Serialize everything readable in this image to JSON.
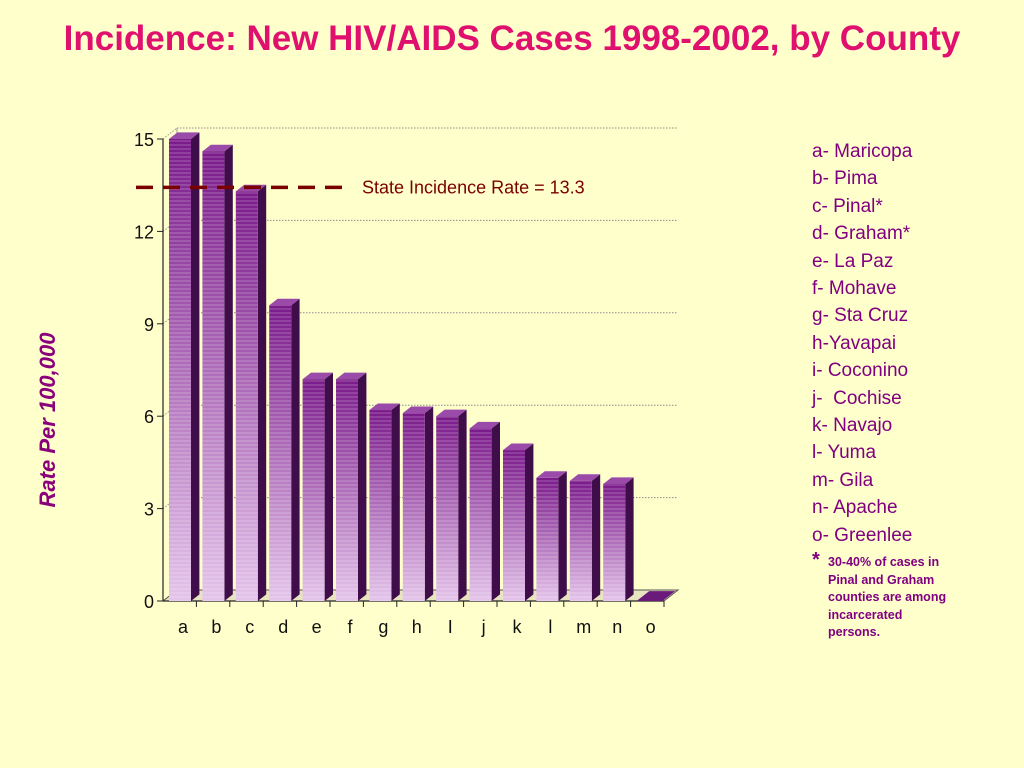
{
  "title": "Incidence: New HIV/AIDS Cases 1998-2002, by County",
  "chart_data": {
    "type": "bar",
    "categories": [
      "a",
      "b",
      "c",
      "d",
      "e",
      "f",
      "g",
      "h",
      "I",
      "j",
      "k",
      "l",
      "m",
      "n",
      "o"
    ],
    "values": [
      15.0,
      14.6,
      13.3,
      9.6,
      7.2,
      7.2,
      6.2,
      6.1,
      6.0,
      5.6,
      4.9,
      4.0,
      3.9,
      3.8,
      0.0
    ],
    "ylabel": "Rate  Per  100,000",
    "xlabel": "",
    "ylim": [
      0,
      15
    ],
    "yticks": [
      0,
      3,
      6,
      9,
      12,
      15
    ],
    "grid": true,
    "reference_line": {
      "value": 13.3,
      "label": "State Incidence Rate = 13.3",
      "color": "#7a0000"
    },
    "bar_color_top": "#7a1a8a",
    "bar_color_bottom": "#e4c4ea"
  },
  "legend": {
    "items": [
      "a- Maricopa",
      "b- Pima",
      "c- Pinal*",
      "d- Graham*",
      "e- La Paz",
      "f- Mohave",
      "g- Sta Cruz",
      "h-Yavapai",
      "i- Coconino",
      "j-  Cochise",
      "k- Navajo",
      "l- Yuma",
      "m- Gila",
      "n- Apache",
      "o- Greenlee"
    ],
    "note_marker": "*",
    "note": "30-40% of cases in Pinal and Graham counties are among incarcerated persons."
  }
}
